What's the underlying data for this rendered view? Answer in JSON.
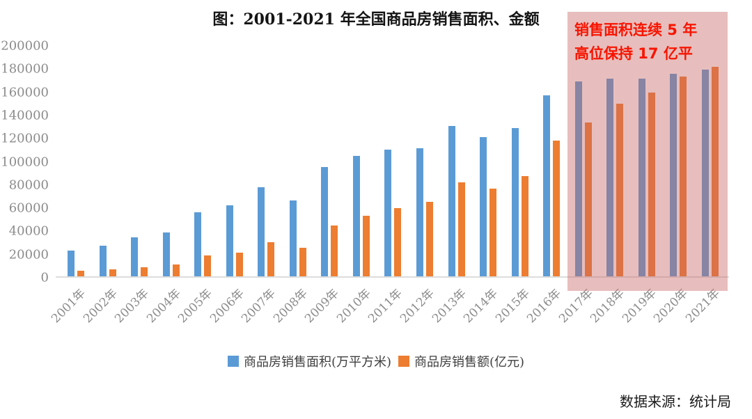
{
  "title": "图：2001-2021 年全国商品房销售面积、金额",
  "source": "数据来源：统计局",
  "annotation": {
    "line1": "销售面积连续 5 年",
    "line2": "高位保持 17 亿平"
  },
  "colors": {
    "area_bar": "#5B9BD5",
    "amount_bar": "#ED7D31",
    "highlight_overlay": "rgba(198,100,98,0.42)",
    "annotation_text": "#F81400",
    "axis_text": "#8C8C8C",
    "baseline": "#DCDCDC"
  },
  "legend": {
    "items": [
      {
        "label": "商品房销售面积(万平方米)",
        "color": "#5B9BD5"
      },
      {
        "label": "商品房销售额(亿元)",
        "color": "#ED7D31"
      }
    ]
  },
  "chart_data": {
    "type": "bar",
    "title": "图：2001-2021 年全国商品房销售面积、金额",
    "xlabel": "",
    "ylabel": "",
    "ylim": [
      0,
      200000
    ],
    "ytick_step": 20000,
    "grid": false,
    "legend_position": "bottom",
    "categories": [
      "2001年",
      "2002年",
      "2003年",
      "2004年",
      "2005年",
      "2006年",
      "2007年",
      "2008年",
      "2009年",
      "2010年",
      "2011年",
      "2012年",
      "2013年",
      "2014年",
      "2015年",
      "2016年",
      "2017年",
      "2018年",
      "2019年",
      "2020年",
      "2021年"
    ],
    "series": [
      {
        "key": "area",
        "name": "商品房销售面积(万平方米)",
        "color": "#5B9BD5",
        "values": [
          22412,
          26808,
          33718,
          38232,
          55486,
          61857,
          77355,
          65970,
          94755,
          104765,
          109946,
          111304,
          130551,
          120649,
          128495,
          157349,
          169408,
          171654,
          171558,
          176086,
          179433
        ]
      },
      {
        "key": "amount",
        "name": "商品房销售额(亿元)",
        "color": "#ED7D31",
        "values": [
          4863,
          6032,
          7956,
          10376,
          18080,
          20826,
          29889,
          25068,
          44355,
          52721,
          59119,
          64456,
          81428,
          76292,
          87281,
          117627,
          133701,
          149973,
          159725,
          173613,
          181930
        ]
      }
    ],
    "highlight": {
      "from_category": "2017年",
      "to_category": "2021年",
      "label": "销售面积连续 5 年高位保持 17 亿平"
    }
  }
}
